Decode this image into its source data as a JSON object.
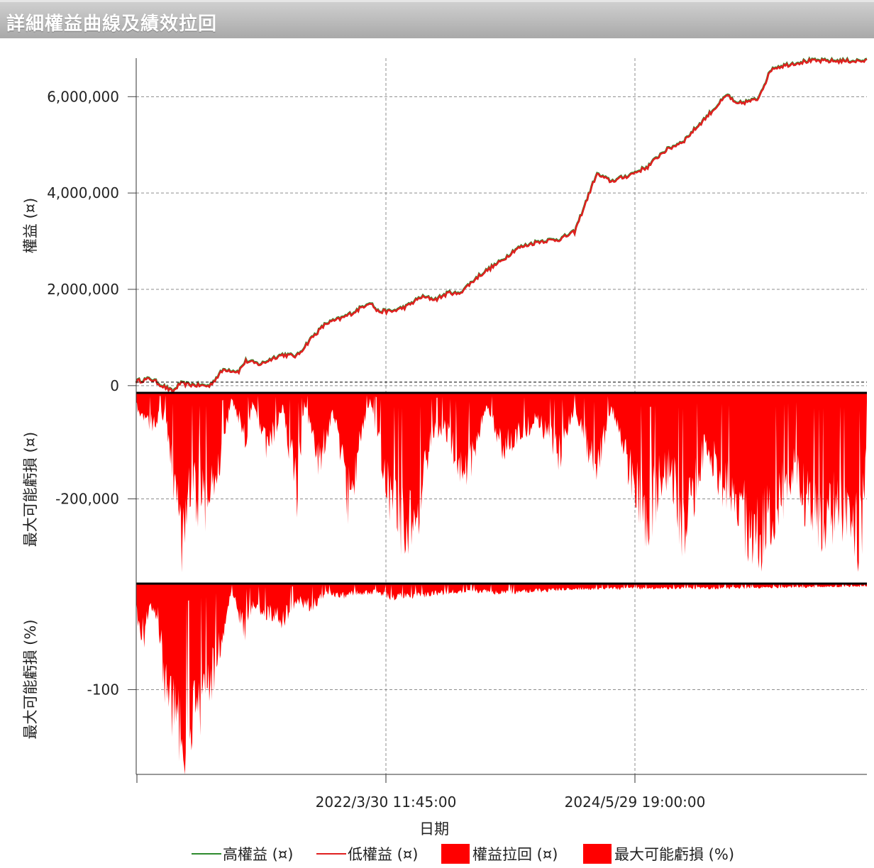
{
  "window": {
    "title": "詳細權益曲線及績效拉回"
  },
  "chart_data": {
    "type": "line",
    "xlabel": "日期",
    "x_ticks": [
      "2022/3/30 11:45:00",
      "2024/5/29 19:00:00"
    ],
    "legend": [
      {
        "label": "高權益 (¤)",
        "color": "#2e8b2e",
        "kind": "line"
      },
      {
        "label": "低權益 (¤)",
        "color": "#e02020",
        "kind": "line"
      },
      {
        "label": "權益拉回 (¤)",
        "color": "#ff0000",
        "kind": "area"
      },
      {
        "label": "最大可能虧損 (%)",
        "color": "#ff0000",
        "kind": "area"
      }
    ],
    "panels": [
      {
        "name": "equity",
        "ylabel": "權益 (¤)",
        "y_ticks": [
          {
            "v": 6000000,
            "label": "6,000,000"
          },
          {
            "v": 4000000,
            "label": "4,000,000"
          },
          {
            "v": 2000000,
            "label": "2,000,000"
          },
          {
            "v": 0,
            "label": "0"
          }
        ],
        "ylim": [
          -150000,
          6800000
        ],
        "series": [
          {
            "name": "低權益 (¤)",
            "x": [
              0.0,
              0.02,
              0.05,
              0.06,
              0.08,
              0.1,
              0.12,
              0.14,
              0.15,
              0.17,
              0.19,
              0.2,
              0.22,
              0.24,
              0.26,
              0.28,
              0.3,
              0.32,
              0.33,
              0.35,
              0.37,
              0.39,
              0.41,
              0.43,
              0.44,
              0.47,
              0.5,
              0.52,
              0.55,
              0.58,
              0.6,
              0.63,
              0.65,
              0.67,
              0.7,
              0.72,
              0.75,
              0.8,
              0.81,
              0.82,
              0.85,
              0.87,
              0.9,
              0.92,
              0.94,
              0.96,
              0.97,
              0.98,
              0.99,
              1.0
            ],
            "values": [
              100000,
              150000,
              -120000,
              50000,
              20000,
              0,
              350000,
              300000,
              520000,
              450000,
              600000,
              650000,
              620000,
              1000000,
              1300000,
              1400000,
              1550000,
              1750000,
              1550000,
              1550000,
              1650000,
              1850000,
              1800000,
              1950000,
              1900000,
              2300000,
              2600000,
              2850000,
              3000000,
              3050000,
              3200000,
              4400000,
              4250000,
              4350000,
              4550000,
              4850000,
              5100000,
              5900000,
              6050000,
              5850000,
              5950000,
              6600000,
              6700000,
              6750000,
              6750000,
              6750000,
              6750000,
              6750000,
              6750000,
              6750000
            ]
          }
        ]
      },
      {
        "name": "drawdown",
        "ylabel": "最大可能虧損 (¤)",
        "y_ticks": [
          {
            "v": -200000,
            "label": "-200,000"
          }
        ],
        "ylim": [
          -360000,
          0
        ],
        "series": [
          {
            "name": "權益拉回 (¤)",
            "x": [
              0.0,
              0.02,
              0.04,
              0.05,
              0.065,
              0.07,
              0.09,
              0.11,
              0.13,
              0.15,
              0.16,
              0.18,
              0.2,
              0.22,
              0.23,
              0.25,
              0.27,
              0.29,
              0.32,
              0.35,
              0.38,
              0.4,
              0.42,
              0.45,
              0.48,
              0.5,
              0.55,
              0.58,
              0.6,
              0.63,
              0.65,
              0.68,
              0.7,
              0.73,
              0.75,
              0.78,
              0.8,
              0.83,
              0.86,
              0.9,
              0.93,
              0.96,
              0.99,
              1.0
            ],
            "values": [
              -30000,
              -70000,
              -50000,
              -200000,
              -350000,
              -210000,
              -250000,
              -230000,
              -10000,
              -100000,
              -20000,
              -130000,
              -30000,
              -220000,
              -20000,
              -150000,
              -50000,
              -250000,
              -10000,
              -250000,
              -350000,
              -120000,
              -70000,
              -200000,
              -30000,
              -120000,
              -60000,
              -140000,
              -30000,
              -180000,
              -30000,
              -200000,
              -280000,
              -150000,
              -320000,
              -100000,
              -200000,
              -280000,
              -320000,
              -160000,
              -300000,
              -250000,
              -340000,
              -170000
            ]
          }
        ]
      },
      {
        "name": "percent",
        "ylabel": "最大可能虧損 (%)",
        "y_ticks": [
          {
            "v": -100,
            "label": "-100"
          }
        ],
        "ylim": [
          -180,
          0
        ],
        "series": [
          {
            "name": "最大可能虧損 (%)",
            "x": [
              0.0,
              0.01,
              0.02,
              0.03,
              0.04,
              0.05,
              0.065,
              0.08,
              0.1,
              0.12,
              0.13,
              0.15,
              0.16,
              0.18,
              0.2,
              0.22,
              0.24,
              0.26,
              0.28,
              0.3,
              0.33,
              0.35,
              0.4,
              0.45,
              0.5,
              0.55,
              0.6,
              0.7,
              0.8,
              0.9,
              1.0
            ],
            "values": [
              -30,
              -60,
              -20,
              -40,
              -110,
              -160,
              -175,
              -140,
              -120,
              -55,
              -10,
              -55,
              -20,
              -35,
              -40,
              -20,
              -25,
              -10,
              -15,
              -10,
              -10,
              -15,
              -12,
              -8,
              -10,
              -8,
              -6,
              -5,
              -5,
              -4,
              -3
            ]
          }
        ]
      }
    ]
  }
}
